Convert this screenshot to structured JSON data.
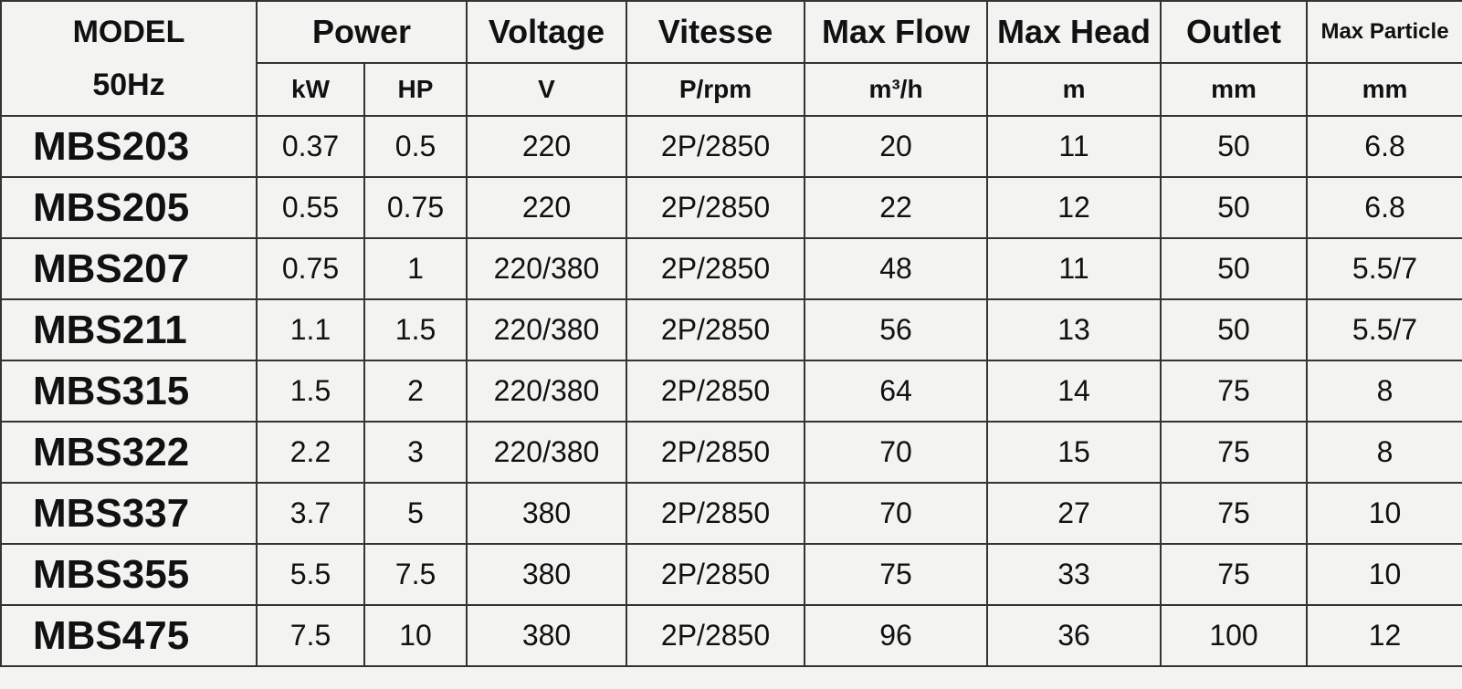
{
  "header": {
    "model": "MODEL",
    "frequency": "50Hz",
    "columns": [
      {
        "title": "Power",
        "units": [
          "kW",
          "HP"
        ]
      },
      {
        "title": "Voltage",
        "units": [
          "V"
        ]
      },
      {
        "title": "Vitesse",
        "units": [
          "P/rpm"
        ]
      },
      {
        "title": "Max Flow",
        "units": [
          "m³/h"
        ]
      },
      {
        "title": "Max Head",
        "units": [
          "m"
        ]
      },
      {
        "title": "Outlet",
        "units": [
          "mm"
        ]
      },
      {
        "title": "Max Particle",
        "units": [
          "mm"
        ]
      }
    ]
  },
  "table": {
    "rows": [
      [
        "MBS203",
        "0.37",
        "0.5",
        "220",
        "2P/2850",
        "20",
        "11",
        "50",
        "6.8"
      ],
      [
        "MBS205",
        "0.55",
        "0.75",
        "220",
        "2P/2850",
        "22",
        "12",
        "50",
        "6.8"
      ],
      [
        "MBS207",
        "0.75",
        "1",
        "220/380",
        "2P/2850",
        "48",
        "11",
        "50",
        "5.5/7"
      ],
      [
        "MBS211",
        "1.1",
        "1.5",
        "220/380",
        "2P/2850",
        "56",
        "13",
        "50",
        "5.5/7"
      ],
      [
        "MBS315",
        "1.5",
        "2",
        "220/380",
        "2P/2850",
        "64",
        "14",
        "75",
        "8"
      ],
      [
        "MBS322",
        "2.2",
        "3",
        "220/380",
        "2P/2850",
        "70",
        "15",
        "75",
        "8"
      ],
      [
        "MBS337",
        "3.7",
        "5",
        "380",
        "2P/2850",
        "70",
        "27",
        "75",
        "10"
      ],
      [
        "MBS355",
        "5.5",
        "7.5",
        "380",
        "2P/2850",
        "75",
        "33",
        "75",
        "10"
      ],
      [
        "MBS475",
        "7.5",
        "10",
        "380",
        "2P/2850",
        "96",
        "36",
        "100",
        "12"
      ]
    ]
  }
}
